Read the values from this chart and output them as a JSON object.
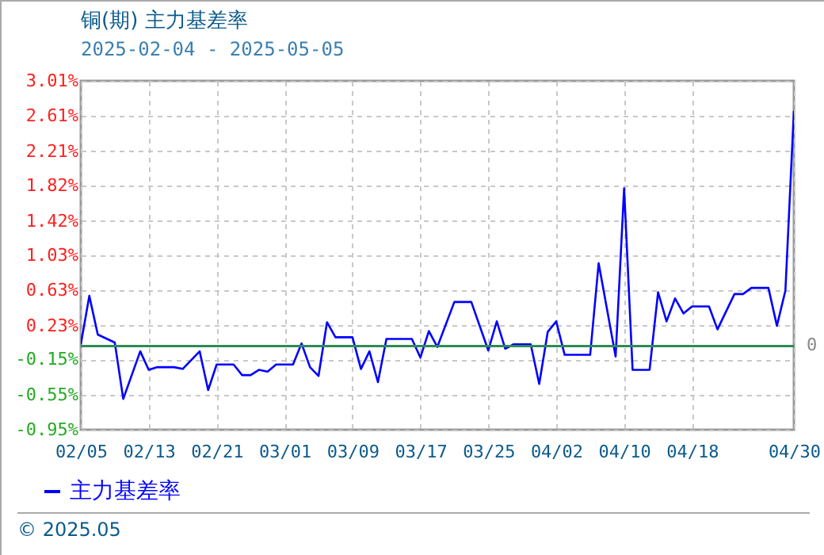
{
  "chart_data": {
    "type": "line",
    "title": "铜(期) 主力基差率",
    "subtitle": "2025-02-04 - 2025-05-05",
    "x": [
      "2025-02-05",
      "2025-02-06",
      "2025-02-07",
      "2025-02-09",
      "2025-02-10",
      "2025-02-12",
      "2025-02-13",
      "2025-02-14",
      "2025-02-16",
      "2025-02-17",
      "2025-02-19",
      "2025-02-20",
      "2025-02-21",
      "2025-02-23",
      "2025-02-24",
      "2025-02-25",
      "2025-02-26",
      "2025-02-27",
      "2025-02-28",
      "2025-03-02",
      "2025-03-03",
      "2025-03-04",
      "2025-03-05",
      "2025-03-06",
      "2025-03-07",
      "2025-03-09",
      "2025-03-10",
      "2025-03-11",
      "2025-03-12",
      "2025-03-13",
      "2025-03-16",
      "2025-03-17",
      "2025-03-18",
      "2025-03-19",
      "2025-03-21",
      "2025-03-23",
      "2025-03-25",
      "2025-03-26",
      "2025-03-27",
      "2025-03-28",
      "2025-03-30",
      "2025-03-31",
      "2025-04-01",
      "2025-04-02",
      "2025-04-03",
      "2025-04-06",
      "2025-04-07",
      "2025-04-09",
      "2025-04-10",
      "2025-04-11",
      "2025-04-13",
      "2025-04-14",
      "2025-04-15",
      "2025-04-16",
      "2025-04-17",
      "2025-04-18",
      "2025-04-20",
      "2025-04-21",
      "2025-04-23",
      "2025-04-24",
      "2025-04-25",
      "2025-04-27",
      "2025-04-28",
      "2025-04-29",
      "2025-04-30"
    ],
    "series": [
      {
        "name": "主力基差率",
        "color": "#0000ff",
        "values": [
          0.02,
          0.57,
          0.13,
          0.04,
          -0.6,
          -0.06,
          -0.27,
          -0.24,
          -0.24,
          -0.26,
          -0.06,
          -0.5,
          -0.21,
          -0.21,
          -0.33,
          -0.33,
          -0.27,
          -0.29,
          -0.21,
          -0.21,
          0.03,
          -0.24,
          -0.34,
          0.27,
          0.1,
          0.1,
          -0.26,
          -0.06,
          -0.41,
          0.08,
          0.08,
          -0.13,
          0.17,
          -0.01,
          0.5,
          0.5,
          -0.05,
          0.28,
          -0.03,
          0.02,
          0.02,
          -0.43,
          0.16,
          0.28,
          -0.1,
          -0.1,
          0.94,
          -0.12,
          1.79,
          -0.27,
          -0.27,
          0.61,
          0.28,
          0.54,
          0.37,
          0.45,
          0.45,
          0.19,
          0.59,
          0.59,
          0.66,
          0.66,
          0.23,
          0.63,
          2.67
        ]
      }
    ],
    "xlim": [
      "2025-02-05",
      "2025-04-30"
    ],
    "xticks": [
      {
        "value": "2025-02-05",
        "label": "02/05"
      },
      {
        "value": "2025-02-13",
        "label": "02/13"
      },
      {
        "value": "2025-02-21",
        "label": "02/21"
      },
      {
        "value": "2025-03-01",
        "label": "03/01"
      },
      {
        "value": "2025-03-09",
        "label": "03/09"
      },
      {
        "value": "2025-03-17",
        "label": "03/17"
      },
      {
        "value": "2025-03-25",
        "label": "03/25"
      },
      {
        "value": "2025-04-02",
        "label": "04/02"
      },
      {
        "value": "2025-04-10",
        "label": "04/10"
      },
      {
        "value": "2025-04-18",
        "label": "04/18"
      },
      {
        "value": "2025-04-30",
        "label": "04/30"
      }
    ],
    "ylim": [
      -0.95,
      3.01
    ],
    "yticks": [
      {
        "value": -0.95,
        "label": "-0.95%"
      },
      {
        "value": -0.55,
        "label": "-0.55%"
      },
      {
        "value": -0.15,
        "label": "-0.15%"
      },
      {
        "value": 0.23,
        "label": "0.23%"
      },
      {
        "value": 0.63,
        "label": "0.63%"
      },
      {
        "value": 1.03,
        "label": "1.03%"
      },
      {
        "value": 1.42,
        "label": "1.42%"
      },
      {
        "value": 1.82,
        "label": "1.82%"
      },
      {
        "value": 2.21,
        "label": "2.21%"
      },
      {
        "value": 2.61,
        "label": "2.61%"
      },
      {
        "value": 3.01,
        "label": "3.01%"
      }
    ],
    "ref_lines": [
      {
        "axis": "y",
        "value": 0,
        "label": "0",
        "color": "#2e8b57"
      }
    ],
    "grid": true,
    "legend": "bottom left",
    "line_style": "solid",
    "annotations": [
      "© 2025.05"
    ]
  }
}
